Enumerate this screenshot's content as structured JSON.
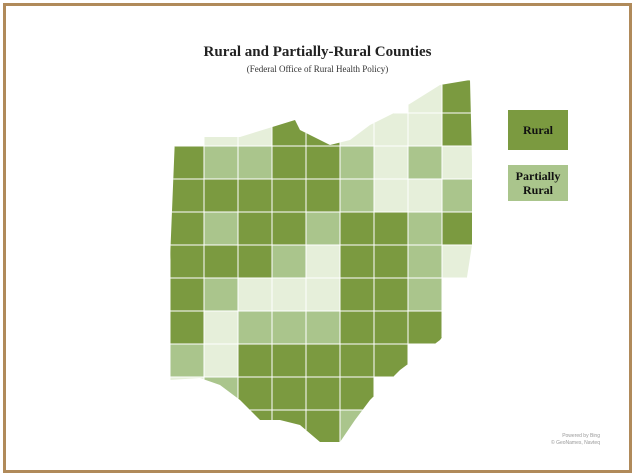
{
  "title": "Rural and Partially-Rural Counties",
  "subtitle": "(Federal Office of Rural Health Policy)",
  "legend": [
    {
      "label": "Rural",
      "color": "#7b9a40"
    },
    {
      "label": "Partially Rural",
      "color": "#aac58c"
    }
  ],
  "colors": {
    "rural": "#7b9a40",
    "partial": "#aac58c",
    "nonrural": "#e6efda",
    "border": "#b08a5a"
  },
  "credit": {
    "line1": "Powered by Bing",
    "line2": "© GeoNames, Navteq"
  },
  "county_grid": [
    "-------NR",
    "-NNRRNNNR",
    "RPPRRPNPN",
    "RRRRRPNNP",
    "RPRRPRRPR",
    "RRRPNRRPN",
    "RPNNNRRP-",
    "RNPPPRRR-",
    "PNRRRRR--",
    "NPRRRR---",
    "--RRRP---"
  ]
}
